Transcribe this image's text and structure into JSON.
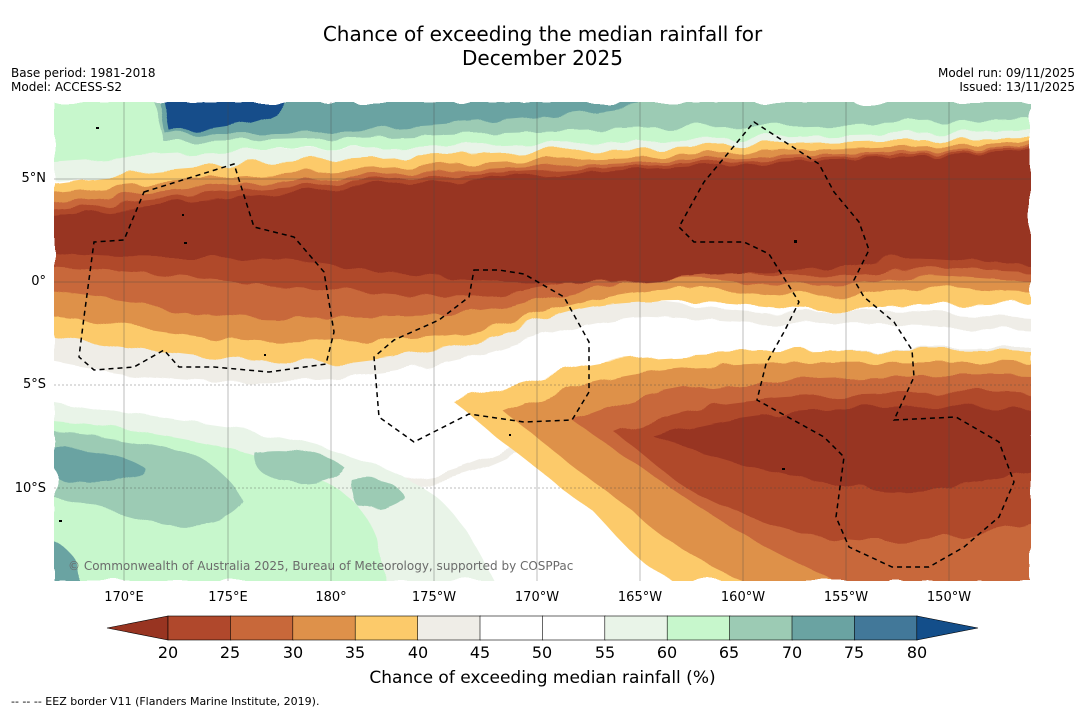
{
  "title": {
    "line1": "Chance of exceeding the median rainfall for",
    "line2": "December 2025"
  },
  "meta": {
    "base_period": "Base period: 1981-2018",
    "model": "Model: ACCESS-S2",
    "model_run": "Model run: 09/11/2025",
    "issued": "Issued: 13/11/2025"
  },
  "axes": {
    "lat_labels": [
      "5°N",
      "0°",
      "5°S",
      "10°S"
    ],
    "lon_labels": [
      "170°E",
      "175°E",
      "180°",
      "175°W",
      "170°W",
      "165°W",
      "160°W",
      "155°W",
      "150°W"
    ]
  },
  "colorbar": {
    "ticks": [
      "20",
      "25",
      "30",
      "35",
      "40",
      "45",
      "50",
      "55",
      "60",
      "65",
      "70",
      "75",
      "80"
    ],
    "label": "Chance of exceeding median rainfall (%)",
    "colors": [
      "#983421",
      "#b0482c",
      "#c8683a",
      "#de914a",
      "#fcca6a",
      "#efede7",
      "#ffffff",
      "#ffffff",
      "#e9f4e8",
      "#c7f7cc",
      "#9ccbb4",
      "#6aa3a2",
      "#427899",
      "#134e8a"
    ]
  },
  "attribution": {
    "copyright": "© Commonwealth of Australia 2025, Bureau of Meteorology, supported by COSPPac",
    "eez_note": "--  --  -- EEZ border V11 (Flanders Marine Institute, 2019)."
  }
}
